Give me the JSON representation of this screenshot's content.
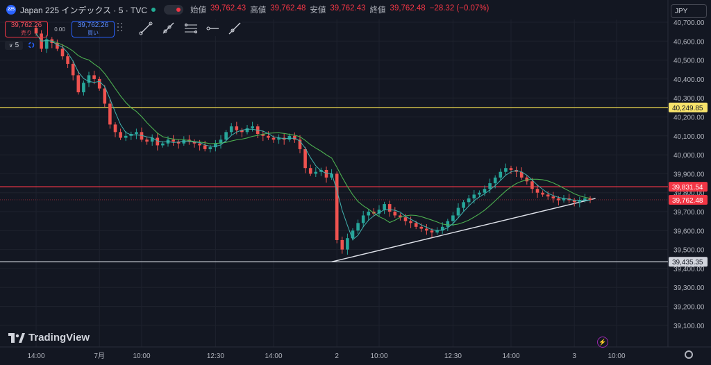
{
  "header": {
    "logo_text": "225",
    "symbol": "Japan 225 インデックス · 5 · TVC",
    "ohlc": [
      {
        "label": "始値",
        "value": "39,762.43"
      },
      {
        "label": "高値",
        "value": "39,762.48"
      },
      {
        "label": "安値",
        "value": "39,762.43"
      },
      {
        "label": "終値",
        "value": "39,762.48"
      }
    ],
    "change": "−28.32 (−0.07%)"
  },
  "trade": {
    "sell_price": "39,762.26",
    "sell_label": "売り",
    "spread": "0.00",
    "buy_price": "39,762.26",
    "buy_label": "買い"
  },
  "interval_label": "5",
  "currency": "JPY",
  "brand": "TradingView",
  "icons": [
    "drag-handle-icon",
    "trend-line-icon",
    "ray-icon",
    "parallel-channel-icon",
    "horizontal-ray-icon",
    "extended-line-icon",
    "chevron-down-icon",
    "spinner-icon",
    "flash-icon",
    "gear-icon",
    "tradingview-logo-icon"
  ],
  "colors": {
    "up": "#26a69a",
    "down": "#ef5350",
    "yellow_line": "#e8d44d",
    "red_line": "#f23645",
    "white_line": "#d1d4dc",
    "ma_fast": "#42b3b0",
    "ma_slow": "#4caf50"
  },
  "chart_data": {
    "type": "candlestick",
    "y_axis_ticks": [
      "40,700.00",
      "40,600.00",
      "40,500.00",
      "40,400.00",
      "40,300.00",
      "40,200.00",
      "40,100.00",
      "40,000.00",
      "39,900.00",
      "39,800.00",
      "39,700.00",
      "39,600.00",
      "39,500.00",
      "39,400.00",
      "39,300.00",
      "39,200.00",
      "39,100.00"
    ],
    "y_axis_values": [
      40700,
      40600,
      40500,
      40400,
      40300,
      40200,
      40100,
      40000,
      39900,
      39800,
      39700,
      39600,
      39500,
      39400,
      39300,
      39200,
      39100
    ],
    "x_axis_ticks": [
      {
        "label": "14:00",
        "idx": 0
      },
      {
        "label": "7月",
        "idx": 12
      },
      {
        "label": "10:00",
        "idx": 20
      },
      {
        "label": "12:30",
        "idx": 34
      },
      {
        "label": "14:00",
        "idx": 45
      },
      {
        "label": "2",
        "idx": 57
      },
      {
        "label": "10:00",
        "idx": 65
      },
      {
        "label": "12:30",
        "idx": 79
      },
      {
        "label": "14:00",
        "idx": 90
      },
      {
        "label": "3",
        "idx": 102
      },
      {
        "label": "10:00",
        "idx": 110
      }
    ],
    "price_levels": [
      {
        "value": 40249.85,
        "label": "40,249.85",
        "color": "#e8d44d",
        "badge_bg": "#f7e36b",
        "badge_fg": "#131722"
      },
      {
        "value": 39831.54,
        "label": "39,831.54",
        "color": "#f23645",
        "badge_bg": "#f23645",
        "badge_fg": "#ffffff"
      },
      {
        "value": 39435.35,
        "label": "39,435.35",
        "color": "#d1d4dc",
        "badge_bg": "#d1d4dc",
        "badge_fg": "#131722"
      }
    ],
    "last_price": {
      "value": 39762.48,
      "label": "39,762.48"
    },
    "trendline": [
      {
        "idx": 56,
        "value": 39435
      },
      {
        "idx": 106,
        "value": 39770
      }
    ],
    "closes": [
      40640,
      40560,
      40610,
      40590,
      40560,
      40520,
      40480,
      40420,
      40330,
      40380,
      40420,
      40400,
      40350,
      40270,
      40160,
      40120,
      40090,
      40100,
      40110,
      40120,
      40080,
      40070,
      40090,
      40050,
      40060,
      40080,
      40070,
      40060,
      40080,
      40070,
      40060,
      40050,
      40030,
      40040,
      40060,
      40080,
      40120,
      40150,
      40130,
      40120,
      40140,
      40150,
      40110,
      40100,
      40090,
      40080,
      40090,
      40080,
      40100,
      40080,
      40030,
      39930,
      39900,
      39910,
      39920,
      39880,
      39900,
      39550,
      39500,
      39560,
      39600,
      39640,
      39680,
      39700,
      39690,
      39710,
      39740,
      39700,
      39680,
      39670,
      39650,
      39640,
      39620,
      39610,
      39600,
      39590,
      39600,
      39620,
      39650,
      39680,
      39720,
      39750,
      39770,
      39790,
      39800,
      39820,
      39850,
      39880,
      39910,
      39930,
      39920,
      39910,
      39880,
      39860,
      39820,
      39800,
      39790,
      39780,
      39770,
      39760,
      39770,
      39760,
      39750,
      39760,
      39770,
      39762
    ]
  }
}
